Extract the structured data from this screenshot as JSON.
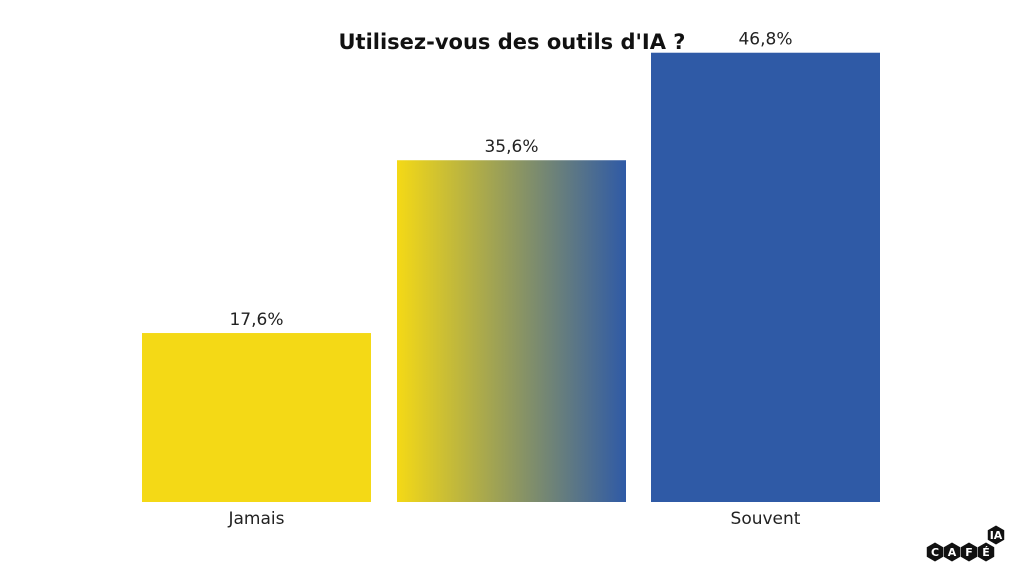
{
  "chart_data": {
    "type": "bar",
    "title": "Utilisez-vous des outils d'IA ?",
    "categories": [
      "Jamais",
      "",
      "Souvent"
    ],
    "values": [
      17.6,
      35.6,
      46.8
    ],
    "value_labels": [
      "17,6%",
      "35,6%",
      "46,8%"
    ],
    "ylim": [
      0,
      50
    ],
    "grid": false,
    "legend": "none",
    "colors": [
      "#f4d916",
      "gradient #f4d916 → #2f5aa6",
      "#2f5aa6"
    ]
  },
  "colors": {
    "yellow": "#f4d916",
    "blue": "#2f5aa6"
  },
  "logo": {
    "letters": [
      "C",
      "A",
      "F",
      "É",
      "IA"
    ],
    "color": "#111111"
  }
}
